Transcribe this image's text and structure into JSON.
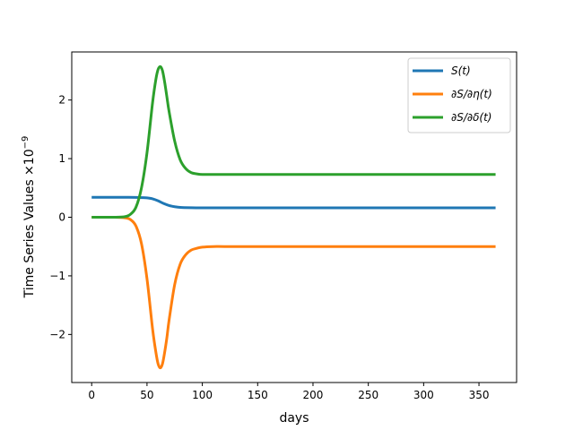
{
  "chart_data": {
    "type": "line",
    "title": "",
    "xlabel": "days",
    "ylabel": "Time Series Values ×10",
    "ylabel_exponent": "−9",
    "xlim": [
      -18,
      384
    ],
    "ylim": [
      -2.82,
      2.82
    ],
    "xticks": [
      0,
      50,
      100,
      150,
      200,
      250,
      300,
      350
    ],
    "xtick_labels": [
      "0",
      "50",
      "100",
      "150",
      "200",
      "250",
      "300",
      "350"
    ],
    "yticks": [
      -2,
      -1,
      0,
      1,
      2
    ],
    "ytick_labels": [
      "−2",
      "−1",
      "0",
      "1",
      "2"
    ],
    "grid": false,
    "legend_position": "top-right",
    "series": [
      {
        "name": "S(t)",
        "color": "#1f77b4",
        "x": [
          0,
          10,
          20,
          30,
          40,
          45,
          50,
          55,
          60,
          65,
          70,
          75,
          80,
          90,
          100,
          120,
          150,
          200,
          250,
          300,
          365
        ],
        "y": [
          0.34,
          0.34,
          0.34,
          0.34,
          0.338,
          0.335,
          0.33,
          0.315,
          0.28,
          0.235,
          0.2,
          0.18,
          0.168,
          0.162,
          0.16,
          0.16,
          0.16,
          0.16,
          0.16,
          0.16,
          0.16
        ]
      },
      {
        "name": "∂S/∂η(t)",
        "color": "#ff7f0e",
        "x": [
          0,
          10,
          20,
          30,
          35,
          40,
          45,
          50,
          55,
          58,
          60,
          62,
          64,
          66,
          68,
          70,
          75,
          80,
          85,
          90,
          95,
          100,
          110,
          120,
          150,
          200,
          250,
          300,
          365
        ],
        "y": [
          0,
          0,
          0,
          -0.01,
          -0.04,
          -0.15,
          -0.45,
          -1.05,
          -1.9,
          -2.3,
          -2.5,
          -2.57,
          -2.5,
          -2.3,
          -2.05,
          -1.75,
          -1.15,
          -0.8,
          -0.64,
          -0.56,
          -0.53,
          -0.51,
          -0.5,
          -0.5,
          -0.5,
          -0.5,
          -0.5,
          -0.5,
          -0.5
        ]
      },
      {
        "name": "∂S/∂δ(t)",
        "color": "#2ca02c",
        "x": [
          0,
          10,
          20,
          30,
          35,
          40,
          45,
          50,
          55,
          58,
          60,
          62,
          64,
          66,
          68,
          70,
          75,
          80,
          85,
          90,
          95,
          100,
          110,
          120,
          150,
          200,
          250,
          300,
          365
        ],
        "y": [
          0,
          0,
          0,
          0.01,
          0.05,
          0.17,
          0.5,
          1.1,
          1.95,
          2.35,
          2.52,
          2.57,
          2.5,
          2.3,
          2.05,
          1.8,
          1.3,
          0.98,
          0.83,
          0.76,
          0.74,
          0.73,
          0.73,
          0.73,
          0.73,
          0.73,
          0.73,
          0.73,
          0.73
        ]
      }
    ]
  }
}
